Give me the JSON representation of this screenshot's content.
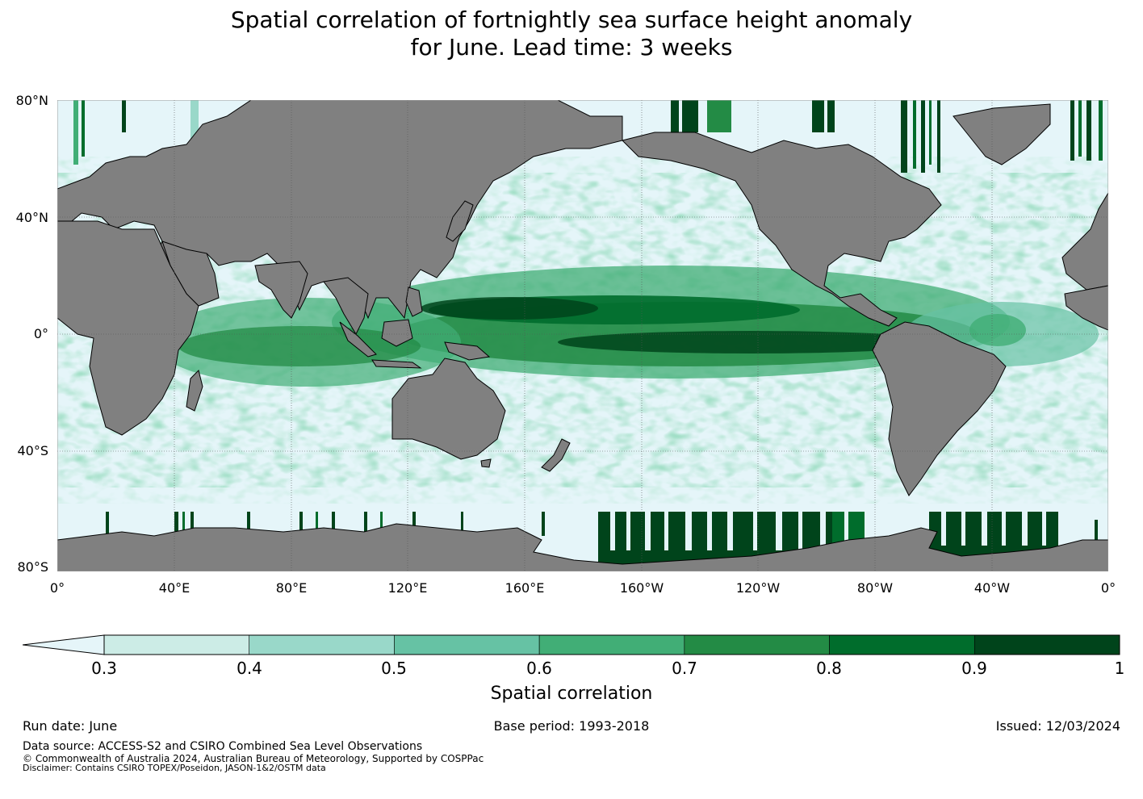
{
  "title": {
    "line1": "Spatial correlation of fortnightly sea surface height anomaly",
    "line2": "for June. Lead time: 3 weeks"
  },
  "map": {
    "lat_labels": [
      "80°N",
      "40°N",
      "0°",
      "40°S",
      "80°S"
    ],
    "lon_labels": [
      "0°",
      "40°E",
      "80°E",
      "120°E",
      "160°E",
      "160°W",
      "120°W",
      "80°W",
      "40°W",
      "0°"
    ],
    "colors": {
      "ocean_low": "#e5f5f9",
      "land": "#808080",
      "coastline": "#000000",
      "grid": "#555555"
    }
  },
  "colorbar": {
    "label": "Spatial correlation",
    "ticks": [
      "0.3",
      "0.4",
      "0.5",
      "0.6",
      "0.7",
      "0.8",
      "0.9",
      "1"
    ],
    "extend_color": "#e5f5f9",
    "colors": [
      "#ccece6",
      "#99d8c9",
      "#66c2a4",
      "#41ae76",
      "#238b45",
      "#006d2c",
      "#00441b"
    ]
  },
  "footer": {
    "run_date": "Run date: June",
    "base_period": "Base period: 1993-2018",
    "issued": "Issued: 12/03/2024",
    "data_source": "Data source: ACCESS-S2 and CSIRO Combined Sea Level Observations",
    "copyright": "© Commonwealth of Australia 2024, Australian Bureau of Meteorology, Supported by COSPPac",
    "disclaimer": "Disclaimer: Contains CSIRO TOPEX/Poseidon, JASON-1&2/OSTM data"
  }
}
